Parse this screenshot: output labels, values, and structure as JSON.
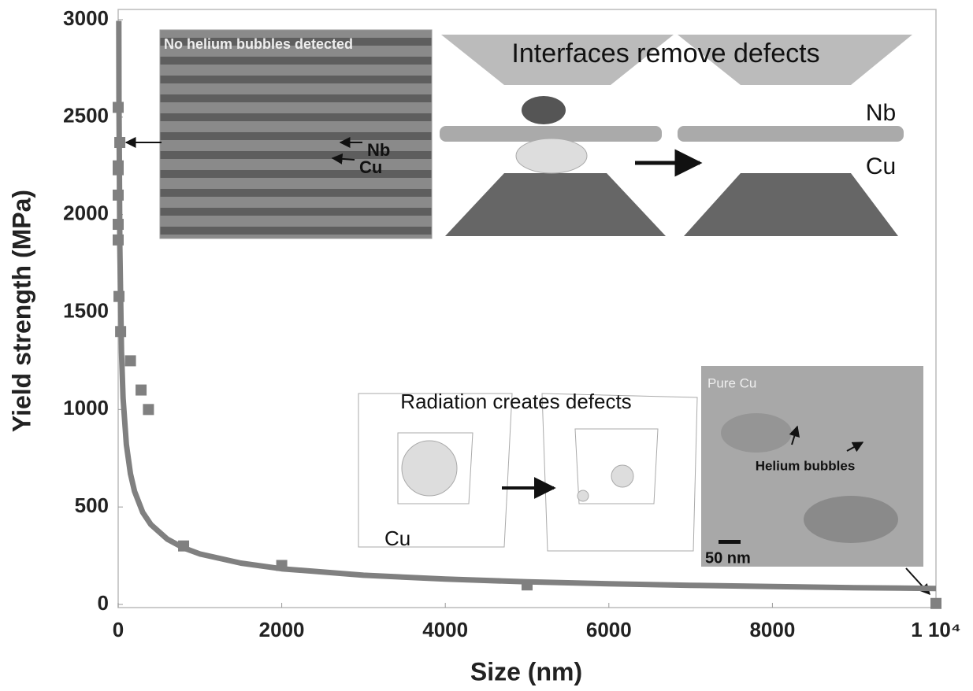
{
  "chart_data": {
    "type": "scatter",
    "xlabel": "Size (nm)",
    "ylabel": "Yield strength (MPa)",
    "xlim": [
      0,
      10000
    ],
    "ylim": [
      0,
      3000
    ],
    "xticks": [
      0,
      2000,
      4000,
      6000,
      8000,
      {
        "value": 10000,
        "label": "1 10⁴"
      }
    ],
    "yticks": [
      0,
      500,
      1000,
      1500,
      2000,
      2500,
      3000
    ],
    "series": [
      {
        "type": "scatter",
        "color": "#808080",
        "x": [
          0,
          20,
          0,
          0,
          0,
          0,
          0,
          10,
          30,
          150,
          280,
          370,
          800,
          2000,
          5000,
          10000
        ],
        "values": [
          2550,
          2370,
          2250,
          2230,
          2100,
          1950,
          1870,
          1580,
          1400,
          1250,
          1100,
          1000,
          300,
          200,
          100,
          5
        ]
      },
      {
        "type": "line",
        "color": "#808080",
        "x": [
          7.5,
          10,
          20,
          40,
          60,
          100,
          150,
          200,
          300,
          400,
          600,
          800,
          1000,
          1500,
          2000,
          3000,
          4000,
          5000,
          6000,
          7000,
          8000,
          9000,
          10000
        ],
        "values": [
          2994,
          2593,
          1834,
          1297,
          1059,
          820,
          670,
          580,
          473,
          410,
          335,
          290,
          259,
          212,
          183,
          150,
          130,
          116,
          106,
          98,
          92,
          86,
          82
        ]
      }
    ],
    "annotations": [
      "No helium bubbles detected",
      "Nb",
      "Cu",
      "Interfaces remove defects",
      "Nb",
      "Cu",
      "Radiation creates defects",
      "Cu",
      "Pure Cu",
      "Helium bubbles",
      "50 nm"
    ]
  }
}
